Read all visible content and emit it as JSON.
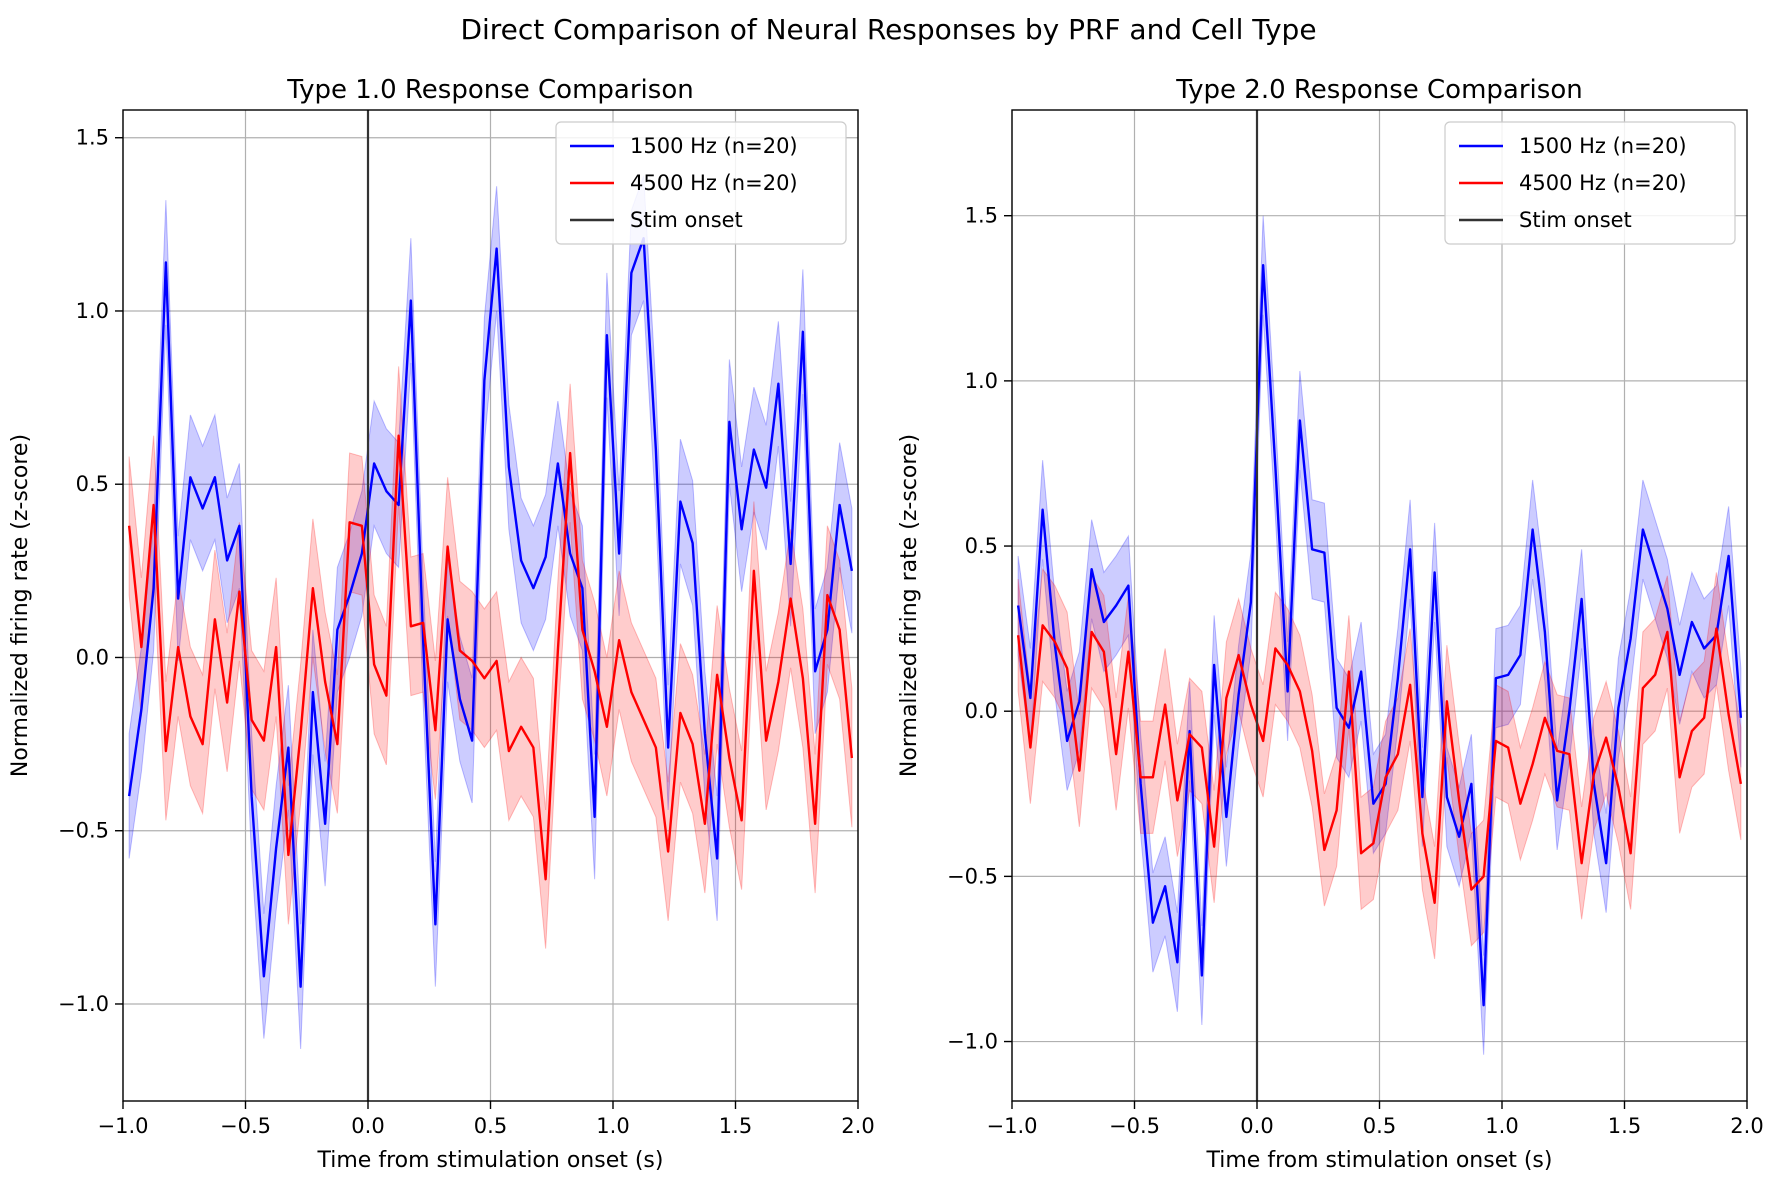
{
  "figure": {
    "title": "Direct Comparison of Neural Responses by PRF and Cell Type"
  },
  "colors": {
    "series1": "#0000ff",
    "series2": "#ff0000",
    "stim": "#333333",
    "grid": "#b0b0b0"
  },
  "chart_data": [
    {
      "type": "line",
      "title": "Type 1.0 Response Comparison",
      "xlabel": "Time from stimulation onset (s)",
      "ylabel": "Normalized firing rate (z-score)",
      "xlim": [
        -1.0,
        2.0
      ],
      "ylim": [
        -1.28,
        1.58
      ],
      "xticks": [
        -1.0,
        -0.5,
        0.0,
        0.5,
        1.0,
        1.5,
        2.0
      ],
      "xtick_labels": [
        "−1.0",
        "−0.5",
        "0.0",
        "0.5",
        "1.0",
        "1.5",
        "2.0"
      ],
      "yticks": [
        -1.0,
        -0.5,
        0.0,
        0.5,
        1.0,
        1.5
      ],
      "ytick_labels": [
        "−1.0",
        "−0.5",
        "0.0",
        "0.5",
        "1.0",
        "1.5"
      ],
      "grid": true,
      "legend_position": "top-right",
      "stim_onset_label": "Stim onset",
      "stim_onset_x": 0.0,
      "x": [
        -0.975,
        -0.925,
        -0.875,
        -0.825,
        -0.775,
        -0.725,
        -0.675,
        -0.625,
        -0.575,
        -0.525,
        -0.475,
        -0.425,
        -0.375,
        -0.325,
        -0.275,
        -0.225,
        -0.175,
        -0.125,
        -0.075,
        -0.025,
        0.025,
        0.075,
        0.125,
        0.175,
        0.225,
        0.275,
        0.325,
        0.375,
        0.425,
        0.475,
        0.525,
        0.575,
        0.625,
        0.675,
        0.725,
        0.775,
        0.825,
        0.875,
        0.925,
        0.975,
        1.025,
        1.075,
        1.125,
        1.175,
        1.225,
        1.275,
        1.325,
        1.375,
        1.425,
        1.475,
        1.525,
        1.575,
        1.625,
        1.675,
        1.725,
        1.775,
        1.825,
        1.875,
        1.925,
        1.975
      ],
      "series": [
        {
          "name": "1500 Hz (n=20)",
          "color": "#0000ff",
          "values": [
            -0.4,
            -0.15,
            0.2,
            1.14,
            0.17,
            0.52,
            0.43,
            0.52,
            0.28,
            0.38,
            -0.4,
            -0.92,
            -0.55,
            -0.26,
            -0.95,
            -0.1,
            -0.48,
            0.08,
            0.18,
            0.3,
            0.56,
            0.48,
            0.44,
            1.03,
            0.05,
            -0.77,
            0.11,
            -0.12,
            -0.24,
            0.8,
            1.18,
            0.55,
            0.28,
            0.2,
            0.29,
            0.56,
            0.3,
            0.2,
            -0.46,
            0.93,
            0.3,
            1.11,
            1.21,
            0.6,
            -0.26,
            0.45,
            0.33,
            -0.22,
            -0.58,
            0.68,
            0.37,
            0.6,
            0.49,
            0.79,
            0.27,
            0.94,
            -0.04,
            0.08,
            0.44,
            0.25
          ],
          "band": 0.18
        },
        {
          "name": "4500 Hz (n=20)",
          "color": "#ff0000",
          "values": [
            0.38,
            0.03,
            0.44,
            -0.27,
            0.03,
            -0.17,
            -0.25,
            0.11,
            -0.13,
            0.19,
            -0.18,
            -0.24,
            0.03,
            -0.57,
            -0.22,
            0.2,
            -0.07,
            -0.25,
            0.39,
            0.38,
            -0.02,
            -0.11,
            0.64,
            0.09,
            0.1,
            -0.21,
            0.32,
            0.02,
            -0.01,
            -0.06,
            -0.01,
            -0.27,
            -0.2,
            -0.26,
            -0.64,
            0.02,
            0.59,
            0.08,
            -0.04,
            -0.2,
            0.05,
            -0.1,
            -0.18,
            -0.26,
            -0.56,
            -0.16,
            -0.25,
            -0.48,
            -0.05,
            -0.29,
            -0.47,
            0.25,
            -0.24,
            -0.07,
            0.17,
            -0.06,
            -0.48,
            0.18,
            0.08,
            -0.29
          ],
          "band": 0.2
        }
      ]
    },
    {
      "type": "line",
      "title": "Type 2.0 Response Comparison",
      "xlabel": "Time from stimulation onset (s)",
      "ylabel": "Normalized firing rate (z-score)",
      "xlim": [
        -1.0,
        2.0
      ],
      "ylim": [
        -1.18,
        1.82
      ],
      "xticks": [
        -1.0,
        -0.5,
        0.0,
        0.5,
        1.0,
        1.5,
        2.0
      ],
      "xtick_labels": [
        "−1.0",
        "−0.5",
        "0.0",
        "0.5",
        "1.0",
        "1.5",
        "2.0"
      ],
      "yticks": [
        -1.0,
        -0.5,
        0.0,
        0.5,
        1.0,
        1.5
      ],
      "ytick_labels": [
        "−1.0",
        "−0.5",
        "0.0",
        "0.5",
        "1.0",
        "1.5"
      ],
      "grid": true,
      "legend_position": "top-right",
      "stim_onset_label": "Stim onset",
      "stim_onset_x": 0.0,
      "x": [
        -0.975,
        -0.925,
        -0.875,
        -0.825,
        -0.775,
        -0.725,
        -0.675,
        -0.625,
        -0.575,
        -0.525,
        -0.475,
        -0.425,
        -0.375,
        -0.325,
        -0.275,
        -0.225,
        -0.175,
        -0.125,
        -0.075,
        -0.025,
        0.025,
        0.075,
        0.125,
        0.175,
        0.225,
        0.275,
        0.325,
        0.375,
        0.425,
        0.475,
        0.525,
        0.575,
        0.625,
        0.675,
        0.725,
        0.775,
        0.825,
        0.875,
        0.925,
        0.975,
        1.025,
        1.075,
        1.125,
        1.175,
        1.225,
        1.275,
        1.325,
        1.375,
        1.425,
        1.475,
        1.525,
        1.575,
        1.625,
        1.675,
        1.725,
        1.775,
        1.825,
        1.875,
        1.925,
        1.975
      ],
      "series": [
        {
          "name": "1500 Hz (n=20)",
          "color": "#0000ff",
          "values": [
            0.32,
            0.04,
            0.61,
            0.2,
            -0.09,
            0.03,
            0.43,
            0.27,
            0.32,
            0.38,
            -0.22,
            -0.64,
            -0.53,
            -0.76,
            -0.06,
            -0.8,
            0.14,
            -0.32,
            0.05,
            0.33,
            1.35,
            0.74,
            0.06,
            0.88,
            0.49,
            0.48,
            0.01,
            -0.05,
            0.12,
            -0.28,
            -0.22,
            0.1,
            0.49,
            -0.26,
            0.42,
            -0.26,
            -0.38,
            -0.22,
            -0.89,
            0.1,
            0.11,
            0.17,
            0.55,
            0.24,
            -0.27,
            0.0,
            0.34,
            -0.22,
            -0.46,
            0.01,
            0.22,
            0.55,
            0.43,
            0.31,
            0.11,
            0.27,
            0.19,
            0.23,
            0.47,
            -0.02
          ],
          "band": 0.15
        },
        {
          "name": "4500 Hz (n=20)",
          "color": "#ff0000",
          "values": [
            0.23,
            -0.11,
            0.26,
            0.21,
            0.13,
            -0.18,
            0.24,
            0.18,
            -0.13,
            0.18,
            -0.2,
            -0.2,
            0.02,
            -0.27,
            -0.07,
            -0.11,
            -0.41,
            0.04,
            0.17,
            0.02,
            -0.09,
            0.19,
            0.14,
            0.06,
            -0.12,
            -0.42,
            -0.3,
            0.12,
            -0.43,
            -0.4,
            -0.2,
            -0.13,
            0.08,
            -0.37,
            -0.58,
            0.03,
            -0.27,
            -0.54,
            -0.5,
            -0.09,
            -0.11,
            -0.28,
            -0.16,
            -0.02,
            -0.12,
            -0.13,
            -0.46,
            -0.19,
            -0.08,
            -0.23,
            -0.43,
            0.07,
            0.11,
            0.24,
            -0.2,
            -0.06,
            -0.02,
            0.25,
            -0.01,
            -0.22
          ],
          "band": 0.17
        }
      ]
    }
  ]
}
